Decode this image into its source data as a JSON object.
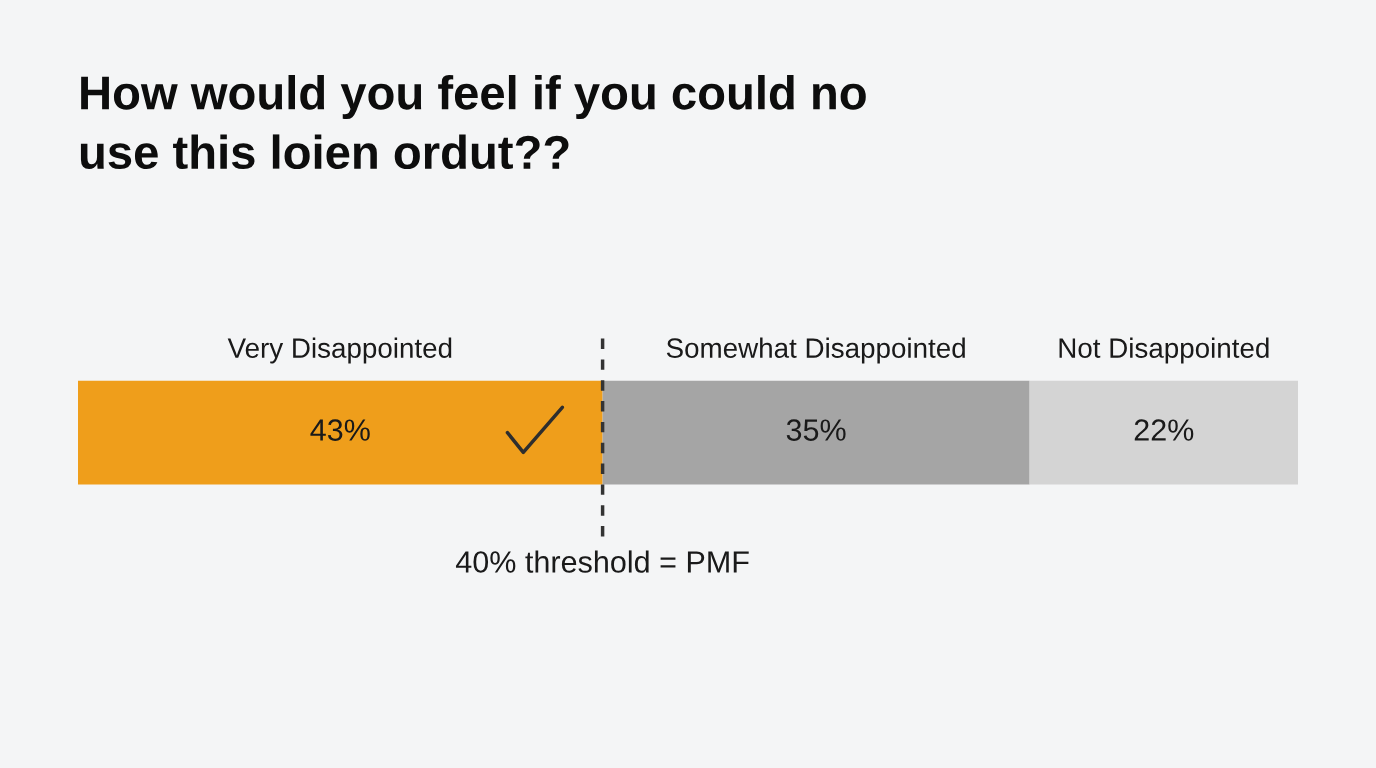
{
  "chart_data": {
    "type": "bar",
    "orientation": "horizontal",
    "stacked": true,
    "title": "How would you feel if you could no\nuse this loien ordut??",
    "categories": [
      null
    ],
    "series": [
      {
        "name": "Very Disappointed",
        "color": "#ef9e1b",
        "values": [
          43
        ],
        "value_labels": [
          "43%"
        ]
      },
      {
        "name": "Somewhat Disappointed",
        "color": "#a5a5a5",
        "values": [
          35
        ],
        "value_labels": [
          "35%"
        ]
      },
      {
        "name": "Not Disappointed",
        "color": "#d4d4d4",
        "values": [
          22
        ],
        "value_labels": [
          "22%"
        ]
      }
    ],
    "ref_lines": [
      {
        "axis": "x",
        "value": 43,
        "label": "40% threshold = PMF",
        "color": "#333333",
        "line_style": "dashed"
      }
    ],
    "legend": false
  }
}
